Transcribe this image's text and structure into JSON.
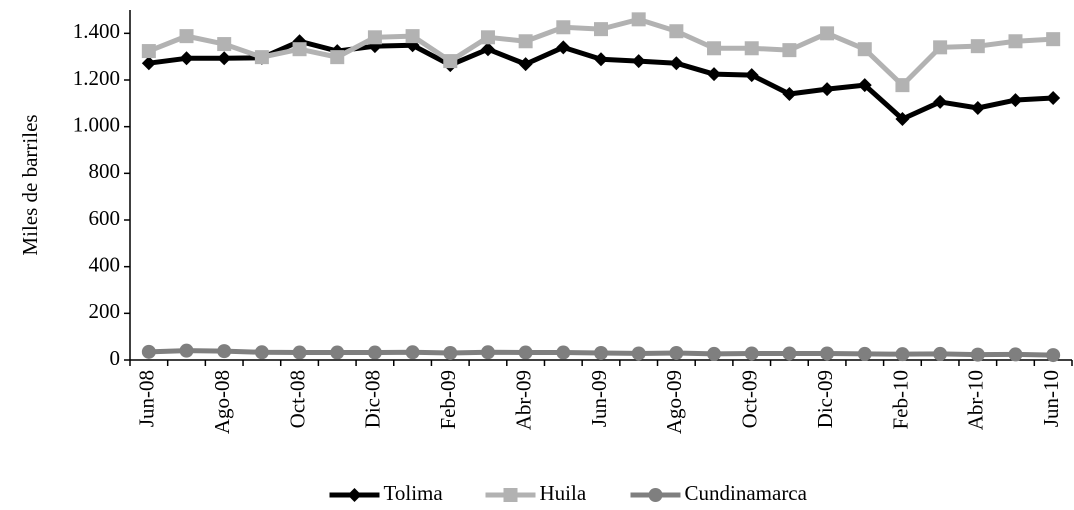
{
  "chart_data": {
    "type": "line",
    "y_label": "Miles de barriles",
    "categories": [
      "Jun-08",
      null,
      "Ago-08",
      null,
      "Oct-08",
      null,
      "Dic-08",
      null,
      "Feb-09",
      null,
      "Abr-09",
      null,
      "Jun-09",
      null,
      "Ago-09",
      null,
      "Oct-09",
      null,
      "Dic-09",
      null,
      "Feb-10",
      null,
      "Abr-10",
      null,
      "Jun-10"
    ],
    "series": [
      {
        "name": "Tolima",
        "color": "#000000",
        "marker": "diamond",
        "values": [
          1272,
          1293,
          1293,
          1295,
          1366,
          1324,
          1345,
          1349,
          1264,
          1332,
          1268,
          1340,
          1289,
          1281,
          1272,
          1225,
          1221,
          1140,
          1161,
          1178,
          1033,
          1106,
          1080,
          1114,
          1123
        ]
      },
      {
        "name": "Huila",
        "color": "#b2b2b2",
        "marker": "square",
        "values": [
          1324,
          1388,
          1354,
          1298,
          1332,
          1298,
          1383,
          1388,
          1281,
          1383,
          1366,
          1426,
          1418,
          1460,
          1409,
          1336,
          1336,
          1328,
          1400,
          1332,
          1178,
          1340,
          1345,
          1366,
          1375
        ]
      },
      {
        "name": "Cundinamarca",
        "color": "#7f7f7f",
        "marker": "circle",
        "values": [
          35,
          40,
          38,
          33,
          32,
          32,
          32,
          33,
          30,
          33,
          32,
          32,
          30,
          28,
          30,
          26,
          28,
          28,
          28,
          26,
          25,
          26,
          23,
          24,
          21
        ]
      }
    ],
    "ylim": [
      0,
      1500
    ],
    "yticks": [
      0,
      200,
      400,
      600,
      800,
      {
        "value": 1000,
        "label": "1.000"
      },
      {
        "value": 1200,
        "label": "1.200"
      },
      {
        "value": 1400,
        "label": "1.400"
      }
    ],
    "legend": "bottom"
  }
}
